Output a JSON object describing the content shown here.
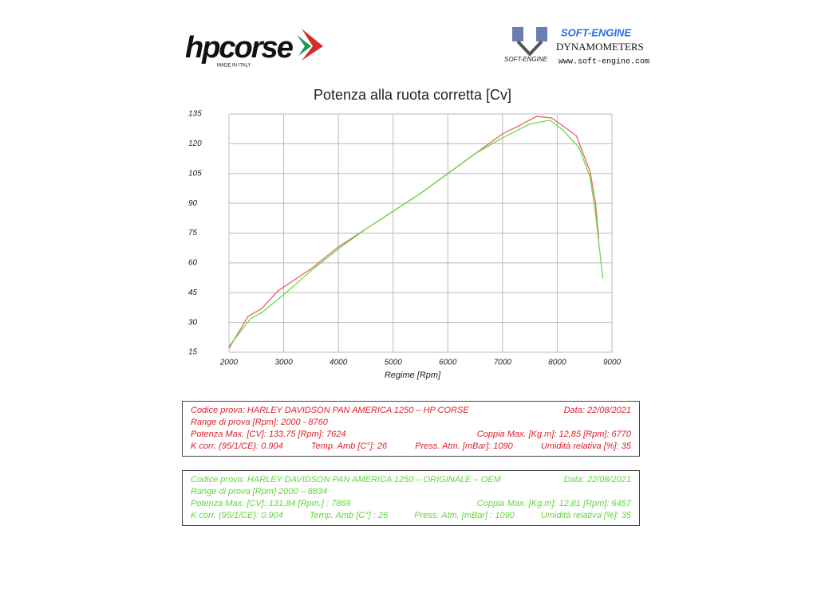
{
  "header": {
    "brand": "hpcorse",
    "brand_note": "MADE IN ITALY",
    "dyno_brand": "SOFT-ENGINE",
    "dyno_type": "DYNAMOMETERS",
    "dyno_site": "www.soft-engine.com",
    "dyno_badge": "SOFT-ENGINE"
  },
  "chart_data": {
    "type": "line",
    "title": "Potenza alla ruota corretta [Cv]",
    "x_label": "Regime [Rpm]",
    "xlim": [
      2000,
      9000
    ],
    "xticks": [
      2000,
      3000,
      4000,
      5000,
      6000,
      7000,
      8000,
      9000
    ],
    "ylim": [
      15,
      135
    ],
    "yticks": [
      15,
      30,
      45,
      60,
      75,
      90,
      105,
      120,
      135
    ],
    "grid": true,
    "series": [
      {
        "color": "#e8606a",
        "x": [
          2000,
          2350,
          2600,
          2900,
          3500,
          4000,
          4500,
          5000,
          5500,
          6000,
          6500,
          7000,
          7300,
          7624,
          7900,
          8050,
          8350,
          8600,
          8700,
          8760
        ],
        "values": [
          17,
          33,
          37,
          46,
          57,
          68,
          77,
          86,
          95,
          105,
          115,
          125,
          129,
          133.75,
          133,
          130,
          124,
          106,
          90,
          72
        ]
      },
      {
        "color": "#66dd44",
        "x": [
          2000,
          2400,
          2600,
          3000,
          3500,
          4000,
          4500,
          5000,
          5500,
          6000,
          6500,
          7000,
          7500,
          7869,
          8100,
          8400,
          8600,
          8700,
          8834
        ],
        "values": [
          18,
          32,
          35,
          44,
          56,
          67,
          77,
          86,
          95,
          105,
          115,
          123,
          130,
          131.84,
          127,
          118,
          103,
          85,
          52
        ]
      }
    ]
  },
  "info_boxes": [
    {
      "color": "#e0202a",
      "lines": [
        [
          "Codice prova: HARLEY DAVIDSON  PAN AMERICA 1250 – HP CORSE",
          "Data: 22/08/2021"
        ],
        [
          "Range di prova [Rpm]: 2000 - 8760"
        ],
        [
          "Potenza Max. [CV]:  133,75 [Rpm]: 7624",
          "Coppia Max. [Kg.m]:  12,85 [Rpm]: 6770"
        ],
        [
          "K corr. (95/1/CE): 0.904",
          "Temp. Amb [C°]: 26",
          "Press. Atm. [mBar]: 1090",
          "Umidità relativa [%]: 35"
        ]
      ]
    },
    {
      "color": "#5cd93a",
      "lines": [
        [
          "Codice prova: HARLEY DAVIDSON  PAN AMERICA 1250 – ORIGINALE – OEM",
          "Data: 22/08/2021"
        ],
        [
          "Range di prova [Rpm] 2000 – 8834"
        ],
        [
          "Potenza Max. [CV]: 131,84 [Rpm.] : 7869",
          "Coppia Max. [Kg.m]: 12,81 [Rpm]: 6457"
        ],
        [
          "K corr. (95/1/CE): 0.904",
          "Temp. Amb [C°] : 26",
          "Press. Atm. [mBar] : 1090",
          "Umidità relativa [%]: 35"
        ]
      ]
    }
  ]
}
